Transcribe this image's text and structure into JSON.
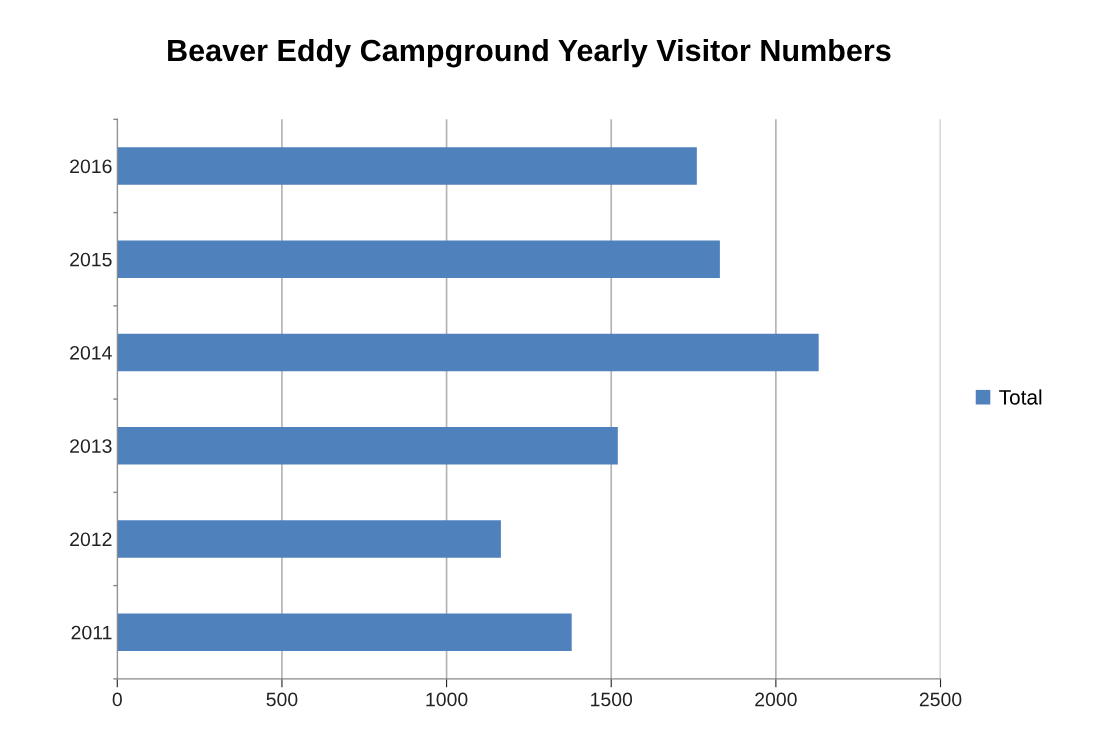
{
  "chart_data": {
    "type": "bar",
    "orientation": "horizontal",
    "title": "Beaver Eddy Campground Yearly Visitor Numbers",
    "categories": [
      "2016",
      "2015",
      "2014",
      "2013",
      "2012",
      "2011"
    ],
    "series": [
      {
        "name": "Total",
        "color": "#4f81bd",
        "values": [
          1760,
          1830,
          2130,
          1520,
          1165,
          1380
        ]
      }
    ],
    "xlim": [
      0,
      2500
    ],
    "xticks": [
      0,
      500,
      1000,
      1500,
      2000,
      2500
    ],
    "grid": "x",
    "legend": "right"
  }
}
